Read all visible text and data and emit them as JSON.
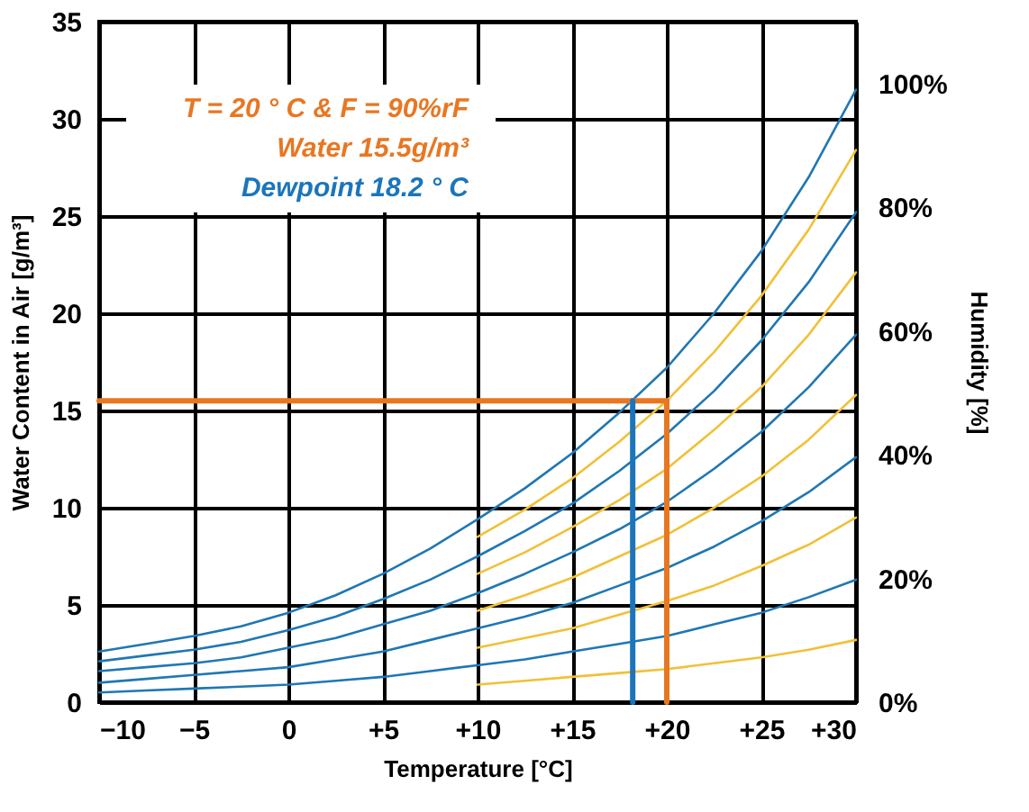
{
  "chart_data": {
    "type": "line",
    "xlabel": "Temperature [°C]",
    "ylabel": "Water Content in Air [g/m³]",
    "y2label": "Humidity [%]",
    "annotations": [
      "T = 20 ° C & F = 90%rF",
      "Water 15.5g/m³",
      "Dewpoint 18.2 ° C"
    ],
    "x": [
      -10,
      -7.5,
      -5,
      -2.5,
      0,
      2.5,
      5,
      7.5,
      10,
      12.5,
      15,
      17.5,
      20,
      22.5,
      25,
      27.5,
      30
    ],
    "series": [
      {
        "color": "#1f77b4",
        "values": [
          2.6,
          3.0,
          3.4,
          3.9,
          4.6,
          5.5,
          6.6,
          7.9,
          9.4,
          11.0,
          12.8,
          14.9,
          17.2,
          20.0,
          23.2,
          27.0,
          31.5
        ]
      },
      {
        "color": "#1f77b4",
        "values": [
          2.1,
          2.4,
          2.7,
          3.1,
          3.7,
          4.4,
          5.3,
          6.3,
          7.5,
          8.8,
          10.2,
          11.9,
          13.8,
          16.0,
          18.6,
          21.6,
          25.2
        ]
      },
      {
        "color": "#1f77b4",
        "values": [
          1.6,
          1.8,
          2.0,
          2.3,
          2.8,
          3.3,
          4.0,
          4.7,
          5.6,
          6.6,
          7.7,
          8.9,
          10.3,
          12.0,
          13.9,
          16.2,
          18.9
        ]
      },
      {
        "color": "#1f77b4",
        "values": [
          1.0,
          1.2,
          1.4,
          1.6,
          1.8,
          2.2,
          2.6,
          3.2,
          3.8,
          4.4,
          5.1,
          6.0,
          6.9,
          8.0,
          9.3,
          10.8,
          12.6
        ]
      },
      {
        "color": "#1f77b4",
        "values": [
          0.5,
          0.6,
          0.7,
          0.8,
          0.9,
          1.1,
          1.3,
          1.6,
          1.9,
          2.2,
          2.6,
          3.0,
          3.4,
          4.0,
          4.6,
          5.4,
          6.3
        ]
      },
      {
        "color": "#f2c037",
        "x": [
          10,
          12.5,
          15,
          17.5,
          20,
          22.5,
          25,
          27.5,
          30
        ],
        "values": [
          8.5,
          9.9,
          11.5,
          13.4,
          15.5,
          18.0,
          20.9,
          24.3,
          28.4
        ]
      },
      {
        "color": "#f2c037",
        "x": [
          10,
          12.5,
          15,
          17.5,
          20,
          22.5,
          25,
          27.5,
          30
        ],
        "values": [
          6.6,
          7.7,
          9.0,
          10.4,
          12.0,
          14.0,
          16.2,
          18.9,
          22.1
        ]
      },
      {
        "color": "#f2c037",
        "x": [
          10,
          12.5,
          15,
          17.5,
          20,
          22.5,
          25,
          27.5,
          30
        ],
        "values": [
          4.7,
          5.5,
          6.4,
          7.5,
          8.6,
          10.0,
          11.6,
          13.5,
          15.8
        ]
      },
      {
        "color": "#f2c037",
        "x": [
          10,
          12.5,
          15,
          17.5,
          20,
          22.5,
          25,
          27.5,
          30
        ],
        "values": [
          2.8,
          3.3,
          3.8,
          4.5,
          5.2,
          6.0,
          7.0,
          8.1,
          9.5
        ]
      },
      {
        "color": "#f2c037",
        "x": [
          10,
          12.5,
          15,
          17.5,
          20,
          22.5,
          25,
          27.5,
          30
        ],
        "values": [
          0.9,
          1.1,
          1.3,
          1.5,
          1.7,
          2.0,
          2.3,
          2.7,
          3.2
        ]
      },
      {
        "color": "#e87722",
        "x": [
          20,
          20
        ],
        "values": [
          0,
          15.5
        ]
      },
      {
        "color": "#e87722",
        "x": [
          20,
          -10
        ],
        "values": [
          15.5,
          15.5
        ]
      },
      {
        "color": "#1b75bb",
        "x": [
          18.2,
          18.2
        ],
        "values": [
          15.5,
          0
        ]
      }
    ],
    "xlim": [
      -10,
      30
    ],
    "xticks": [
      -10,
      -5,
      0,
      {
        "value": 5,
        "label": "+5"
      },
      {
        "value": 10,
        "label": "+10"
      },
      {
        "value": 15,
        "label": "+15"
      },
      {
        "value": 20,
        "label": "+20"
      },
      {
        "value": 25,
        "label": "+25"
      },
      {
        "value": 30,
        "label": "+30"
      }
    ],
    "ylim": [
      0,
      35
    ],
    "yticks": [
      0,
      5,
      10,
      15,
      20,
      25,
      30,
      35
    ],
    "y2lim": [
      0,
      110
    ],
    "y2ticks": [
      {
        "value": 0,
        "label": "0%"
      },
      {
        "value": 20,
        "label": "20%"
      },
      {
        "value": 40,
        "label": "40%"
      },
      {
        "value": 60,
        "label": "60%"
      },
      {
        "value": 80,
        "label": "80%"
      },
      {
        "value": 100,
        "label": "100%"
      }
    ],
    "grid": true,
    "marker": "none",
    "line_style": "solid"
  }
}
